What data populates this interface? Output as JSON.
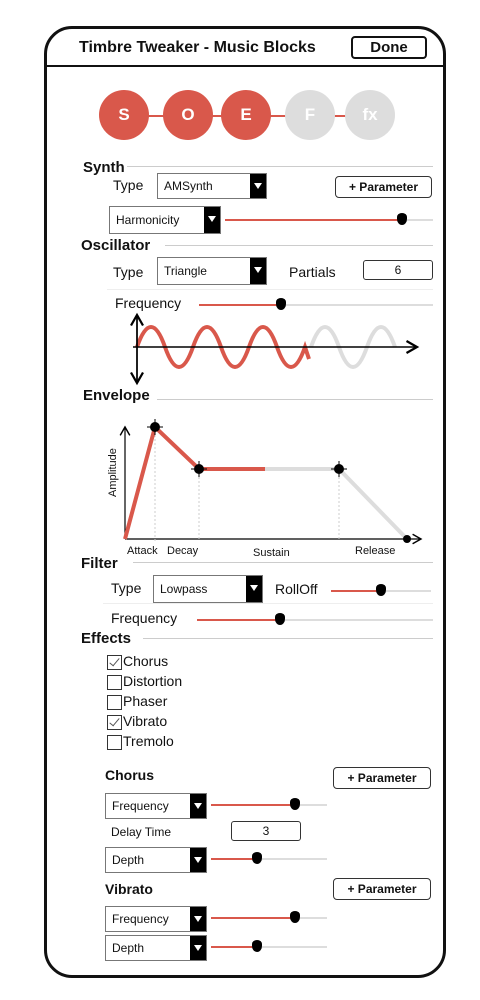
{
  "header": {
    "title": "Timbre Tweaker - Music Blocks",
    "done_label": "Done"
  },
  "steps": [
    {
      "label": "S",
      "active": true
    },
    {
      "label": "O",
      "active": true
    },
    {
      "label": "E",
      "active": true
    },
    {
      "label": "F",
      "active": false
    },
    {
      "label": "fx",
      "active": false
    }
  ],
  "colors": {
    "accent": "#d9584b",
    "inactive": "#dddddd",
    "track": "#dddddd"
  },
  "synth": {
    "heading": "Synth",
    "type_label": "Type",
    "type_value": "AMSynth",
    "add_param": "+ Parameter",
    "param_select": "Harmonicity",
    "param_level": 0.85
  },
  "oscillator": {
    "heading": "Oscillator",
    "type_label": "Type",
    "type_value": "Triangle",
    "partials_label": "Partials",
    "partials_value": "6",
    "frequency_label": "Frequency",
    "frequency_level": 0.35
  },
  "envelope": {
    "heading": "Envelope",
    "y_label": "Amplitude",
    "x_labels": [
      "Attack",
      "Decay",
      "Sustain",
      "Release"
    ]
  },
  "filter": {
    "heading": "Filter",
    "type_label": "Type",
    "type_value": "Lowpass",
    "rolloff_label": "RollOff",
    "rolloff_level": 0.5,
    "frequency_label": "Frequency",
    "frequency_level": 0.35
  },
  "effects": {
    "heading": "Effects",
    "items": [
      {
        "label": "Chorus",
        "checked": true
      },
      {
        "label": "Distortion",
        "checked": false
      },
      {
        "label": "Phaser",
        "checked": false
      },
      {
        "label": "Vibrato",
        "checked": true
      },
      {
        "label": "Tremolo",
        "checked": false
      }
    ]
  },
  "chorus": {
    "heading": "Chorus",
    "add_param": "+ Parameter",
    "frequency_select": "Frequency",
    "frequency_level": 0.72,
    "delay_label": "Delay Time",
    "delay_value": "3",
    "depth_select": "Depth",
    "depth_level": 0.4
  },
  "vibrato": {
    "heading": "Vibrato",
    "add_param": "+ Parameter",
    "frequency_select": "Frequency",
    "frequency_level": 0.72,
    "depth_select": "Depth",
    "depth_level": 0.4
  }
}
